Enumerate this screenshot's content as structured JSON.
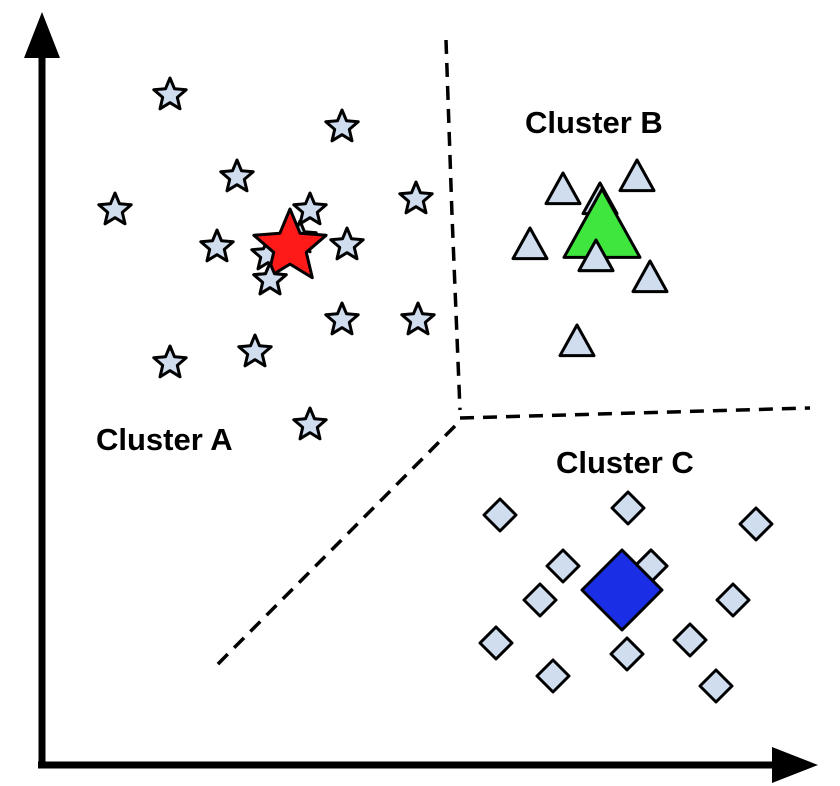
{
  "colors": {
    "member_fill": "#cfddef",
    "outline": "#000000",
    "boundary": "#000000",
    "axis": "#000000"
  },
  "clusters": [
    {
      "id": "a",
      "label": "Cluster A",
      "marker": "star",
      "centroid_color": "#ff1a1a",
      "member_count": 16
    },
    {
      "id": "b",
      "label": "Cluster B",
      "marker": "triangle",
      "centroid_color": "#3ee63e",
      "member_count": 7
    },
    {
      "id": "c",
      "label": "Cluster C",
      "marker": "diamond",
      "centroid_color": "#1a2ee6",
      "member_count": 12
    }
  ]
}
